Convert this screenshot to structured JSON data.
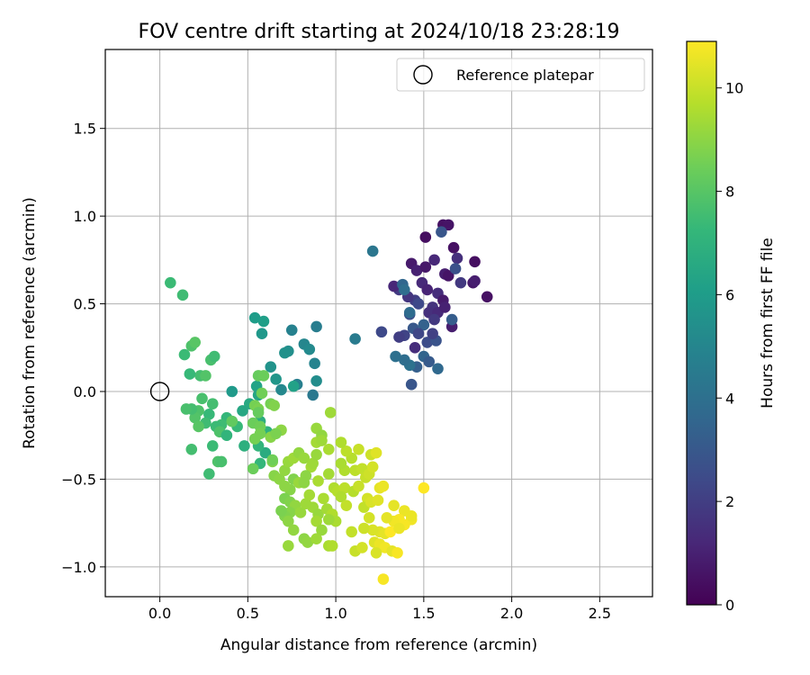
{
  "chart_data": {
    "type": "scatter",
    "title": "FOV centre drift starting at 2024/10/18 23:28:19",
    "xlabel": "Angular distance from reference (arcmin)",
    "ylabel": "Rotation from reference (arcmin)",
    "xlim": [
      -0.31,
      2.8
    ],
    "ylim": [
      -1.17,
      1.95
    ],
    "xticks": [
      0.0,
      0.5,
      1.0,
      1.5,
      2.0,
      2.5
    ],
    "xtick_labels": [
      "0.0",
      "0.5",
      "1.0",
      "1.5",
      "2.0",
      "2.5"
    ],
    "yticks": [
      -1.0,
      -0.5,
      0.0,
      0.5,
      1.0,
      1.5
    ],
    "ytick_labels": [
      "−1.0",
      "−0.5",
      "0.0",
      "0.5",
      "1.0",
      "1.5"
    ],
    "grid": true,
    "legend": {
      "placement": "top-right",
      "entries": [
        "Reference platepar"
      ]
    },
    "reference_point": {
      "x": 0.0,
      "y": 0.0,
      "label": "Reference platepar"
    },
    "colorbar": {
      "label": "Hours from first FF file",
      "colormap": "viridis",
      "range": [
        0,
        10.9
      ],
      "ticks": [
        0,
        2,
        4,
        6,
        8,
        10
      ],
      "tick_labels": [
        "0",
        "2",
        "4",
        "6",
        "8",
        "10"
      ]
    },
    "points": [
      {
        "x": 1.61,
        "y": 0.95,
        "h": 0.5
      },
      {
        "x": 1.64,
        "y": 0.95,
        "h": 0.6
      },
      {
        "x": 1.51,
        "y": 0.88,
        "h": 0.4
      },
      {
        "x": 1.67,
        "y": 0.82,
        "h": 0.5
      },
      {
        "x": 1.79,
        "y": 0.74,
        "h": 0.4
      },
      {
        "x": 1.86,
        "y": 0.54,
        "h": 0.5
      },
      {
        "x": 1.43,
        "y": 0.73,
        "h": 0.8
      },
      {
        "x": 1.46,
        "y": 0.69,
        "h": 1.0
      },
      {
        "x": 1.51,
        "y": 0.71,
        "h": 0.7
      },
      {
        "x": 1.56,
        "y": 0.75,
        "h": 1.2
      },
      {
        "x": 1.62,
        "y": 0.67,
        "h": 0.9
      },
      {
        "x": 1.64,
        "y": 0.66,
        "h": 0.6
      },
      {
        "x": 1.69,
        "y": 0.76,
        "h": 1.5
      },
      {
        "x": 1.71,
        "y": 0.62,
        "h": 1.8
      },
      {
        "x": 1.78,
        "y": 0.62,
        "h": 0.7
      },
      {
        "x": 1.79,
        "y": 0.63,
        "h": 0.9
      },
      {
        "x": 1.49,
        "y": 0.62,
        "h": 1.3
      },
      {
        "x": 1.52,
        "y": 0.58,
        "h": 1.1
      },
      {
        "x": 1.58,
        "y": 0.56,
        "h": 1.4
      },
      {
        "x": 1.61,
        "y": 0.52,
        "h": 0.8
      },
      {
        "x": 1.55,
        "y": 0.48,
        "h": 1.6
      },
      {
        "x": 1.45,
        "y": 0.52,
        "h": 2.0
      },
      {
        "x": 1.41,
        "y": 0.54,
        "h": 1.7
      },
      {
        "x": 1.36,
        "y": 0.58,
        "h": 1.9
      },
      {
        "x": 1.33,
        "y": 0.6,
        "h": 1.2
      },
      {
        "x": 1.47,
        "y": 0.5,
        "h": 2.4
      },
      {
        "x": 1.53,
        "y": 0.45,
        "h": 1.5
      },
      {
        "x": 1.58,
        "y": 0.45,
        "h": 1.3
      },
      {
        "x": 1.62,
        "y": 0.48,
        "h": 1.0
      },
      {
        "x": 1.66,
        "y": 0.37,
        "h": 0.9
      },
      {
        "x": 1.42,
        "y": 0.44,
        "h": 2.6
      },
      {
        "x": 1.39,
        "y": 0.32,
        "h": 2.2
      },
      {
        "x": 1.45,
        "y": 0.25,
        "h": 1.4
      },
      {
        "x": 1.52,
        "y": 0.28,
        "h": 2.5
      },
      {
        "x": 1.57,
        "y": 0.29,
        "h": 2.8
      },
      {
        "x": 1.36,
        "y": 0.31,
        "h": 2.0
      },
      {
        "x": 1.6,
        "y": 0.91,
        "h": 2.9
      },
      {
        "x": 1.68,
        "y": 0.7,
        "h": 2.7
      },
      {
        "x": 1.66,
        "y": 0.41,
        "h": 3.2
      },
      {
        "x": 1.56,
        "y": 0.41,
        "h": 1.8
      },
      {
        "x": 1.5,
        "y": 0.38,
        "h": 3.4
      },
      {
        "x": 1.44,
        "y": 0.36,
        "h": 3.0
      },
      {
        "x": 1.47,
        "y": 0.33,
        "h": 2.3
      },
      {
        "x": 1.55,
        "y": 0.33,
        "h": 2.1
      },
      {
        "x": 1.38,
        "y": 0.61,
        "h": 3.6
      },
      {
        "x": 1.39,
        "y": 0.58,
        "h": 3.9
      },
      {
        "x": 1.42,
        "y": 0.45,
        "h": 3.8
      },
      {
        "x": 1.5,
        "y": 0.2,
        "h": 3.5
      },
      {
        "x": 1.53,
        "y": 0.17,
        "h": 3.1
      },
      {
        "x": 1.46,
        "y": 0.14,
        "h": 3.3
      },
      {
        "x": 1.58,
        "y": 0.13,
        "h": 3.7
      },
      {
        "x": 1.42,
        "y": 0.15,
        "h": 4.1
      },
      {
        "x": 1.39,
        "y": 0.18,
        "h": 3.9
      },
      {
        "x": 1.34,
        "y": 0.2,
        "h": 4.0
      },
      {
        "x": 1.43,
        "y": 0.04,
        "h": 2.9
      },
      {
        "x": 1.26,
        "y": 0.34,
        "h": 2.4
      },
      {
        "x": 1.21,
        "y": 0.8,
        "h": 4.3
      },
      {
        "x": 1.11,
        "y": 0.3,
        "h": 4.5
      },
      {
        "x": 0.89,
        "y": 0.37,
        "h": 4.6
      },
      {
        "x": 0.75,
        "y": 0.35,
        "h": 4.8
      },
      {
        "x": 0.82,
        "y": 0.27,
        "h": 5.0
      },
      {
        "x": 0.85,
        "y": 0.24,
        "h": 5.2
      },
      {
        "x": 0.73,
        "y": 0.23,
        "h": 5.4
      },
      {
        "x": 0.71,
        "y": 0.22,
        "h": 5.5
      },
      {
        "x": 0.88,
        "y": 0.16,
        "h": 4.9
      },
      {
        "x": 0.63,
        "y": 0.14,
        "h": 5.6
      },
      {
        "x": 0.58,
        "y": 0.33,
        "h": 5.8
      },
      {
        "x": 0.54,
        "y": 0.42,
        "h": 6.0
      },
      {
        "x": 0.59,
        "y": 0.4,
        "h": 6.1
      },
      {
        "x": 0.78,
        "y": 0.04,
        "h": 4.7
      },
      {
        "x": 0.76,
        "y": 0.03,
        "h": 6.2
      },
      {
        "x": 0.87,
        "y": -0.02,
        "h": 4.4
      },
      {
        "x": 0.89,
        "y": 0.06,
        "h": 5.3
      },
      {
        "x": 0.69,
        "y": 0.01,
        "h": 5.1
      },
      {
        "x": 0.66,
        "y": 0.07,
        "h": 5.7
      },
      {
        "x": 0.55,
        "y": 0.03,
        "h": 6.3
      },
      {
        "x": 0.56,
        "y": -0.02,
        "h": 6.4
      },
      {
        "x": 0.51,
        "y": -0.07,
        "h": 6.6
      },
      {
        "x": 0.47,
        "y": -0.11,
        "h": 6.5
      },
      {
        "x": 0.41,
        "y": 0.0,
        "h": 5.9
      },
      {
        "x": 0.57,
        "y": -0.17,
        "h": 6.8
      },
      {
        "x": 0.61,
        "y": -0.23,
        "h": 7.0
      },
      {
        "x": 0.6,
        "y": -0.35,
        "h": 6.7
      },
      {
        "x": 0.48,
        "y": -0.31,
        "h": 6.9
      },
      {
        "x": 0.56,
        "y": -0.31,
        "h": 7.1
      },
      {
        "x": 0.57,
        "y": -0.41,
        "h": 7.2
      },
      {
        "x": 0.44,
        "y": -0.2,
        "h": 7.3
      },
      {
        "x": 0.41,
        "y": -0.17,
        "h": 7.4
      },
      {
        "x": 0.38,
        "y": -0.15,
        "h": 7.2
      },
      {
        "x": 0.35,
        "y": -0.19,
        "h": 7.5
      },
      {
        "x": 0.3,
        "y": -0.07,
        "h": 7.6
      },
      {
        "x": 0.28,
        "y": -0.13,
        "h": 7.3
      },
      {
        "x": 0.24,
        "y": -0.04,
        "h": 7.7
      },
      {
        "x": 0.22,
        "y": -0.11,
        "h": 7.8
      },
      {
        "x": 0.2,
        "y": -0.15,
        "h": 7.9
      },
      {
        "x": 0.18,
        "y": -0.1,
        "h": 7.6
      },
      {
        "x": 0.15,
        "y": -0.1,
        "h": 7.7
      },
      {
        "x": 0.26,
        "y": -0.18,
        "h": 7.5
      },
      {
        "x": 0.32,
        "y": -0.2,
        "h": 7.4
      },
      {
        "x": 0.34,
        "y": -0.23,
        "h": 7.8
      },
      {
        "x": 0.38,
        "y": -0.25,
        "h": 7.1
      },
      {
        "x": 0.3,
        "y": -0.31,
        "h": 7.4
      },
      {
        "x": 0.18,
        "y": -0.33,
        "h": 7.6
      },
      {
        "x": 0.22,
        "y": -0.2,
        "h": 8.0
      },
      {
        "x": 0.33,
        "y": -0.4,
        "h": 7.8
      },
      {
        "x": 0.35,
        "y": -0.4,
        "h": 7.7
      },
      {
        "x": 0.28,
        "y": -0.47,
        "h": 7.5
      },
      {
        "x": 0.23,
        "y": 0.09,
        "h": 7.6
      },
      {
        "x": 0.26,
        "y": 0.09,
        "h": 7.9
      },
      {
        "x": 0.17,
        "y": 0.1,
        "h": 7.3
      },
      {
        "x": 0.29,
        "y": 0.18,
        "h": 7.7
      },
      {
        "x": 0.31,
        "y": 0.2,
        "h": 7.5
      },
      {
        "x": 0.14,
        "y": 0.21,
        "h": 7.4
      },
      {
        "x": 0.18,
        "y": 0.26,
        "h": 7.8
      },
      {
        "x": 0.2,
        "y": 0.28,
        "h": 8.0
      },
      {
        "x": 0.06,
        "y": 0.62,
        "h": 7.4
      },
      {
        "x": 0.13,
        "y": 0.55,
        "h": 7.5
      },
      {
        "x": 0.56,
        "y": 0.09,
        "h": 8.3
      },
      {
        "x": 0.59,
        "y": 0.09,
        "h": 8.4
      },
      {
        "x": 0.58,
        "y": -0.01,
        "h": 8.5
      },
      {
        "x": 0.54,
        "y": -0.08,
        "h": 8.6
      },
      {
        "x": 0.56,
        "y": -0.1,
        "h": 8.7
      },
      {
        "x": 0.56,
        "y": -0.12,
        "h": 8.3
      },
      {
        "x": 0.63,
        "y": -0.07,
        "h": 8.6
      },
      {
        "x": 0.65,
        "y": -0.08,
        "h": 8.8
      },
      {
        "x": 0.41,
        "y": -0.17,
        "h": 8.2
      },
      {
        "x": 0.53,
        "y": -0.18,
        "h": 8.4
      },
      {
        "x": 0.57,
        "y": -0.2,
        "h": 8.5
      },
      {
        "x": 0.57,
        "y": -0.24,
        "h": 8.6
      },
      {
        "x": 0.63,
        "y": -0.26,
        "h": 8.9
      },
      {
        "x": 0.69,
        "y": -0.22,
        "h": 9.0
      },
      {
        "x": 0.66,
        "y": -0.24,
        "h": 8.7
      },
      {
        "x": 0.53,
        "y": -0.44,
        "h": 8.4
      },
      {
        "x": 0.64,
        "y": -0.4,
        "h": 8.8
      },
      {
        "x": 0.54,
        "y": -0.27,
        "h": 8.6
      },
      {
        "x": 0.64,
        "y": -0.39,
        "h": 8.5
      },
      {
        "x": 0.65,
        "y": -0.48,
        "h": 8.9
      },
      {
        "x": 0.68,
        "y": -0.5,
        "h": 9.0
      },
      {
        "x": 0.71,
        "y": -0.45,
        "h": 9.1
      },
      {
        "x": 0.73,
        "y": -0.4,
        "h": 9.2
      },
      {
        "x": 0.76,
        "y": -0.38,
        "h": 9.3
      },
      {
        "x": 0.79,
        "y": -0.35,
        "h": 9.1
      },
      {
        "x": 0.82,
        "y": -0.38,
        "h": 9.2
      },
      {
        "x": 0.86,
        "y": -0.43,
        "h": 9.4
      },
      {
        "x": 0.83,
        "y": -0.48,
        "h": 9.0
      },
      {
        "x": 0.87,
        "y": -0.41,
        "h": 9.3
      },
      {
        "x": 0.89,
        "y": -0.21,
        "h": 9.2
      },
      {
        "x": 0.89,
        "y": -0.29,
        "h": 9.4
      },
      {
        "x": 0.92,
        "y": -0.25,
        "h": 9.1
      },
      {
        "x": 0.89,
        "y": -0.36,
        "h": 9.2
      },
      {
        "x": 0.92,
        "y": -0.28,
        "h": 9.3
      },
      {
        "x": 0.96,
        "y": -0.33,
        "h": 9.5
      },
      {
        "x": 0.97,
        "y": -0.12,
        "h": 9.3
      },
      {
        "x": 0.76,
        "y": -0.5,
        "h": 8.8
      },
      {
        "x": 0.79,
        "y": -0.52,
        "h": 9.2
      },
      {
        "x": 0.82,
        "y": -0.52,
        "h": 9.0
      },
      {
        "x": 0.74,
        "y": -0.56,
        "h": 8.9
      },
      {
        "x": 0.71,
        "y": -0.54,
        "h": 9.0
      },
      {
        "x": 0.71,
        "y": -0.61,
        "h": 8.7
      },
      {
        "x": 0.74,
        "y": -0.63,
        "h": 8.8
      },
      {
        "x": 0.77,
        "y": -0.65,
        "h": 9.1
      },
      {
        "x": 0.74,
        "y": -0.69,
        "h": 8.9
      },
      {
        "x": 0.71,
        "y": -0.71,
        "h": 8.8
      },
      {
        "x": 0.69,
        "y": -0.68,
        "h": 8.7
      },
      {
        "x": 0.73,
        "y": -0.74,
        "h": 9.0
      },
      {
        "x": 0.76,
        "y": -0.79,
        "h": 9.1
      },
      {
        "x": 0.8,
        "y": -0.69,
        "h": 9.2
      },
      {
        "x": 0.83,
        "y": -0.64,
        "h": 9.3
      },
      {
        "x": 0.85,
        "y": -0.59,
        "h": 9.4
      },
      {
        "x": 0.87,
        "y": -0.66,
        "h": 9.3
      },
      {
        "x": 0.9,
        "y": -0.7,
        "h": 9.2
      },
      {
        "x": 0.93,
        "y": -0.61,
        "h": 9.5
      },
      {
        "x": 0.95,
        "y": -0.67,
        "h": 9.4
      },
      {
        "x": 0.98,
        "y": -0.7,
        "h": 9.6
      },
      {
        "x": 1.0,
        "y": -0.74,
        "h": 9.5
      },
      {
        "x": 0.96,
        "y": -0.73,
        "h": 9.3
      },
      {
        "x": 0.89,
        "y": -0.74,
        "h": 9.4
      },
      {
        "x": 0.92,
        "y": -0.79,
        "h": 9.2
      },
      {
        "x": 0.82,
        "y": -0.84,
        "h": 9.0
      },
      {
        "x": 0.84,
        "y": -0.86,
        "h": 9.1
      },
      {
        "x": 0.89,
        "y": -0.84,
        "h": 9.3
      },
      {
        "x": 0.96,
        "y": -0.88,
        "h": 9.5
      },
      {
        "x": 0.98,
        "y": -0.88,
        "h": 9.6
      },
      {
        "x": 0.73,
        "y": -0.88,
        "h": 9.2
      },
      {
        "x": 0.96,
        "y": -0.47,
        "h": 9.4
      },
      {
        "x": 0.9,
        "y": -0.51,
        "h": 9.5
      },
      {
        "x": 0.99,
        "y": -0.55,
        "h": 9.6
      },
      {
        "x": 1.01,
        "y": -0.57,
        "h": 9.7
      },
      {
        "x": 1.05,
        "y": -0.55,
        "h": 9.8
      },
      {
        "x": 1.03,
        "y": -0.6,
        "h": 9.6
      },
      {
        "x": 1.06,
        "y": -0.65,
        "h": 9.9
      },
      {
        "x": 1.1,
        "y": -0.57,
        "h": 9.7
      },
      {
        "x": 1.13,
        "y": -0.54,
        "h": 10.0
      },
      {
        "x": 1.11,
        "y": -0.45,
        "h": 9.8
      },
      {
        "x": 1.05,
        "y": -0.45,
        "h": 9.6
      },
      {
        "x": 1.03,
        "y": -0.41,
        "h": 9.5
      },
      {
        "x": 1.09,
        "y": -0.38,
        "h": 9.7
      },
      {
        "x": 1.15,
        "y": -0.44,
        "h": 9.9
      },
      {
        "x": 1.17,
        "y": -0.49,
        "h": 10.0
      },
      {
        "x": 1.19,
        "y": -0.47,
        "h": 10.1
      },
      {
        "x": 1.21,
        "y": -0.43,
        "h": 10.2
      },
      {
        "x": 1.2,
        "y": -0.36,
        "h": 10.1
      },
      {
        "x": 1.13,
        "y": -0.33,
        "h": 10.0
      },
      {
        "x": 1.06,
        "y": -0.34,
        "h": 9.8
      },
      {
        "x": 1.03,
        "y": -0.29,
        "h": 9.6
      },
      {
        "x": 1.23,
        "y": -0.35,
        "h": 10.4
      },
      {
        "x": 1.18,
        "y": -0.61,
        "h": 10.2
      },
      {
        "x": 1.16,
        "y": -0.66,
        "h": 9.9
      },
      {
        "x": 1.2,
        "y": -0.63,
        "h": 10.3
      },
      {
        "x": 1.24,
        "y": -0.62,
        "h": 10.4
      },
      {
        "x": 1.25,
        "y": -0.55,
        "h": 10.5
      },
      {
        "x": 1.27,
        "y": -0.54,
        "h": 10.6
      },
      {
        "x": 1.33,
        "y": -0.65,
        "h": 10.5
      },
      {
        "x": 1.39,
        "y": -0.68,
        "h": 10.6
      },
      {
        "x": 1.43,
        "y": -0.73,
        "h": 10.7
      },
      {
        "x": 1.36,
        "y": -0.73,
        "h": 10.8
      },
      {
        "x": 1.33,
        "y": -0.74,
        "h": 10.7
      },
      {
        "x": 1.39,
        "y": -0.76,
        "h": 10.8
      },
      {
        "x": 1.43,
        "y": -0.71,
        "h": 10.6
      },
      {
        "x": 1.29,
        "y": -0.72,
        "h": 10.5
      },
      {
        "x": 1.25,
        "y": -0.8,
        "h": 10.4
      },
      {
        "x": 1.21,
        "y": -0.79,
        "h": 10.3
      },
      {
        "x": 1.19,
        "y": -0.72,
        "h": 10.2
      },
      {
        "x": 1.16,
        "y": -0.78,
        "h": 10.1
      },
      {
        "x": 1.09,
        "y": -0.8,
        "h": 9.9
      },
      {
        "x": 1.11,
        "y": -0.91,
        "h": 10.0
      },
      {
        "x": 1.15,
        "y": -0.89,
        "h": 10.2
      },
      {
        "x": 1.22,
        "y": -0.86,
        "h": 10.4
      },
      {
        "x": 1.25,
        "y": -0.87,
        "h": 10.6
      },
      {
        "x": 1.28,
        "y": -0.89,
        "h": 10.7
      },
      {
        "x": 1.32,
        "y": -0.91,
        "h": 10.5
      },
      {
        "x": 1.35,
        "y": -0.92,
        "h": 10.8
      },
      {
        "x": 1.28,
        "y": -0.81,
        "h": 10.5
      },
      {
        "x": 1.23,
        "y": -0.92,
        "h": 10.3
      },
      {
        "x": 1.27,
        "y": -1.07,
        "h": 10.8
      },
      {
        "x": 1.5,
        "y": -0.55,
        "h": 10.9
      },
      {
        "x": 1.31,
        "y": -0.8,
        "h": 10.9
      },
      {
        "x": 1.36,
        "y": -0.78,
        "h": 10.6
      }
    ]
  }
}
